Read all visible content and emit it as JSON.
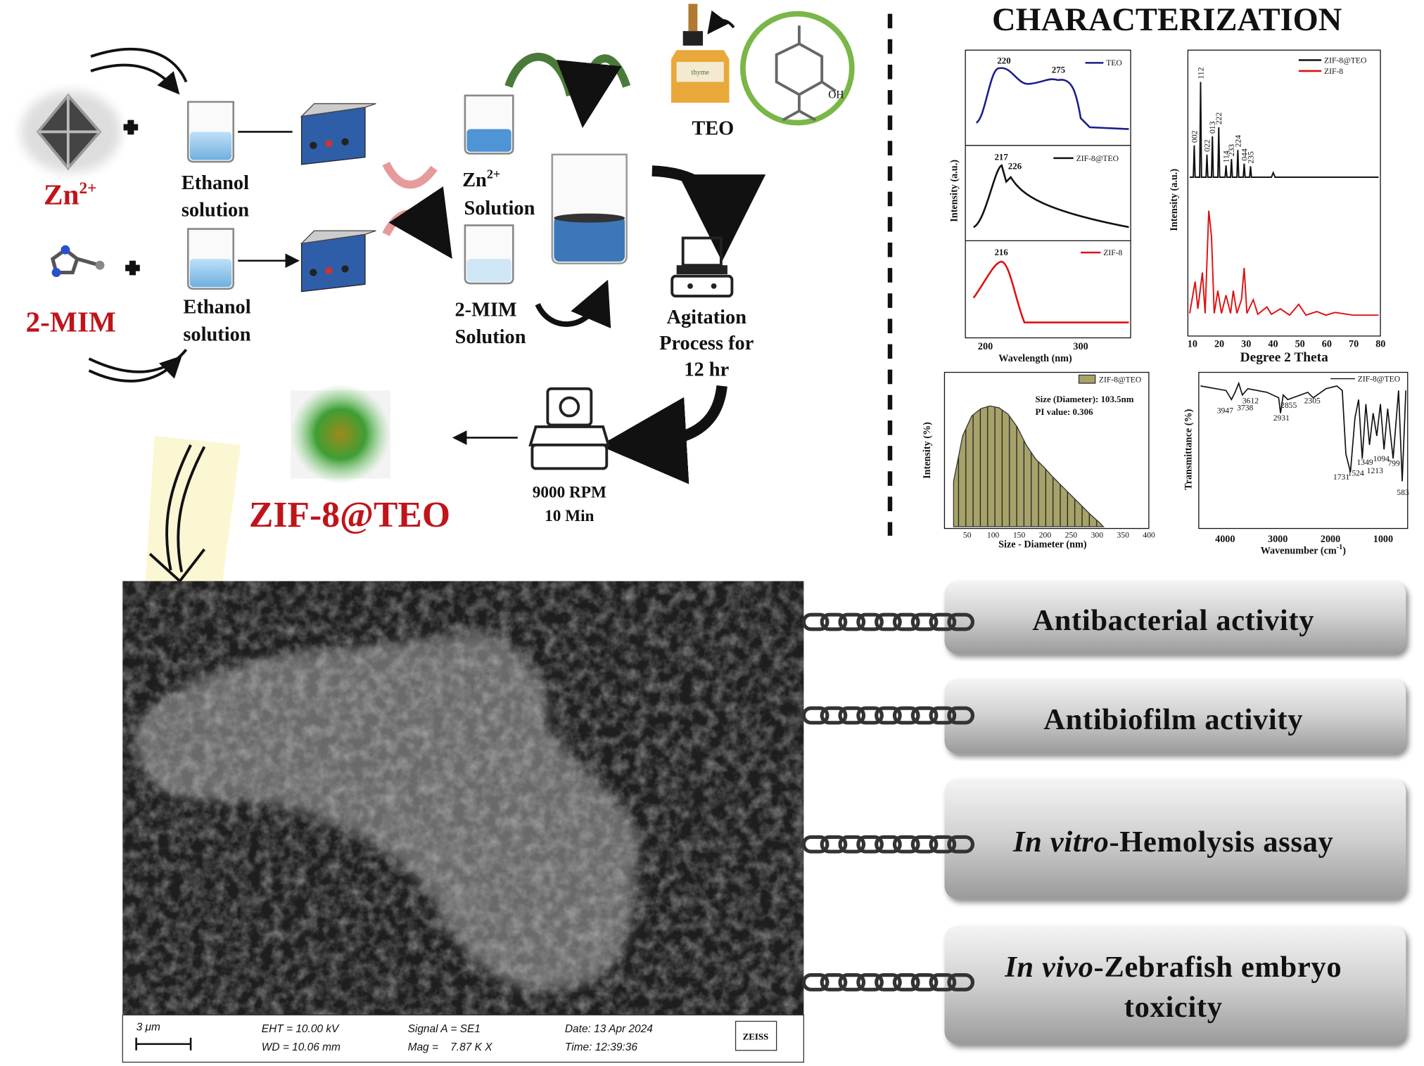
{
  "synthesis": {
    "metal": {
      "symbol": "Zn",
      "charge": "2+"
    },
    "linker": "2-MIM",
    "ethanol_1": [
      "Ethanol",
      "solution"
    ],
    "ethanol_2": [
      "Ethanol",
      "solution"
    ],
    "zn_solution": {
      "symbol": "Zn",
      "charge": "2+",
      "word": "Solution"
    },
    "mim_solution": [
      "2-MIM",
      "Solution"
    ],
    "oil": "TEO",
    "oh": "OH",
    "bottle": "thyme",
    "agitation": [
      "Agitation",
      "Process for",
      "12 hr"
    ],
    "centrifuge": [
      "9000 RPM",
      "10 Min"
    ],
    "product": "ZIF-8@TEO"
  },
  "characterization": {
    "title": "CHARACTERIZATION",
    "uv": {
      "panels": [
        {
          "legend": "TEO",
          "peaks": [
            "220",
            "275"
          ]
        },
        {
          "legend": "ZIF-8@TEO",
          "peaks": [
            "217",
            "226"
          ]
        },
        {
          "legend": "ZIF-8",
          "peaks": [
            "216"
          ]
        }
      ],
      "ylabel": "Intensity (a.u.)",
      "xlabel": "Wavelength (nm)",
      "xticks": [
        "200",
        "300"
      ]
    },
    "xrd": {
      "legend": [
        "ZIF-8@TEO",
        "ZIF-8"
      ],
      "peaks": [
        "002",
        "112",
        "022",
        "013",
        "222",
        "114",
        "233",
        "224",
        "044",
        "235"
      ],
      "ylabel": "Intensity (a.u.)",
      "xlabel": "Degree 2 Theta",
      "xticks": [
        "10",
        "20",
        "30",
        "40",
        "50",
        "60",
        "70",
        "80"
      ]
    },
    "dls": {
      "legend": "ZIF-8@TEO",
      "size": "Size (Diameter): 103.5nm",
      "pi": "PI value: 0.306",
      "ylabel": "Intensity (%)",
      "xlabel": "Size - Diameter (nm)",
      "xticks": [
        "50",
        "100",
        "150",
        "200",
        "250",
        "300",
        "350",
        "400"
      ]
    },
    "ftir": {
      "legend": "ZIF-8@TEO",
      "peaks": [
        "3947",
        "3738",
        "3612",
        "2931",
        "2855",
        "2305",
        "1731",
        "1524",
        "1349",
        "1213",
        "1094",
        "799",
        "583"
      ],
      "ylabel": "Transmittance (%)",
      "xlabel": {
        "text": "Wavenumber (cm",
        "sup": "-1",
        "end": ")"
      },
      "xticks": [
        "4000",
        "3000",
        "2000",
        "1000"
      ]
    }
  },
  "sem": {
    "scale": "3 μm",
    "eht": "EHT = 10.00 kV",
    "wd": "WD = 10.06 mm",
    "signal": "Signal A = SE1",
    "mag": "Mag =    7.87 K X",
    "date": "Date: 13 Apr 2024",
    "time": "Time: 12:39:36",
    "brand": "ZEISS"
  },
  "applications": [
    {
      "text": "Antibacterial activity"
    },
    {
      "text": "Antibiofilm activity"
    },
    {
      "italic": "In vitro",
      "rest": "-Hemolysis assay"
    },
    {
      "italic": "In vivo",
      "rest": "-Zebrafish embryo",
      "line2": "toxicity"
    }
  ]
}
